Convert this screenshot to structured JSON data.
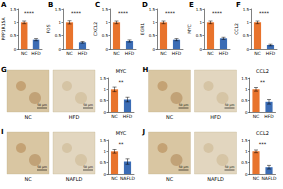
{
  "chart_data": [
    {
      "panel": "A",
      "type": "bar",
      "ylabel": "PPP1R15A",
      "categories": [
        "NC",
        "HFD"
      ],
      "values": [
        1.0,
        0.35
      ],
      "errors": [
        0.05,
        0.04
      ],
      "colors": [
        "#e8732c",
        "#3b6cb5"
      ],
      "ylim": [
        0,
        1.5
      ],
      "yticks": [
        0,
        0.5,
        1,
        1.5
      ],
      "grid": false,
      "annotation": "****"
    },
    {
      "panel": "B",
      "type": "bar",
      "ylabel": "FOS",
      "categories": [
        "NC",
        "HFD"
      ],
      "values": [
        1.0,
        0.25
      ],
      "errors": [
        0.06,
        0.03
      ],
      "colors": [
        "#e8732c",
        "#3b6cb5"
      ],
      "ylim": [
        0,
        1.5
      ],
      "yticks": [
        0,
        0.5,
        1,
        1.5
      ],
      "grid": false,
      "annotation": "****"
    },
    {
      "panel": "C",
      "type": "bar",
      "ylabel": "CXCL2",
      "categories": [
        "NC",
        "HFD"
      ],
      "values": [
        1.0,
        0.3
      ],
      "errors": [
        0.05,
        0.04
      ],
      "colors": [
        "#e8732c",
        "#3b6cb5"
      ],
      "ylim": [
        0,
        1.5
      ],
      "yticks": [
        0,
        0.5,
        1,
        1.5
      ],
      "grid": false,
      "annotation": "****"
    },
    {
      "panel": "D",
      "type": "bar",
      "ylabel": "EGR1",
      "categories": [
        "NC",
        "HFD"
      ],
      "values": [
        1.0,
        0.35
      ],
      "errors": [
        0.05,
        0.04
      ],
      "colors": [
        "#e8732c",
        "#3b6cb5"
      ],
      "ylim": [
        0,
        1.5
      ],
      "yticks": [
        0,
        0.5,
        1,
        1.5
      ],
      "grid": false,
      "annotation": "****"
    },
    {
      "panel": "E",
      "type": "bar",
      "ylabel": "MYC",
      "categories": [
        "NC",
        "HFD"
      ],
      "values": [
        1.0,
        0.4
      ],
      "errors": [
        0.05,
        0.04
      ],
      "colors": [
        "#e8732c",
        "#3b6cb5"
      ],
      "ylim": [
        0,
        1.5
      ],
      "yticks": [
        0,
        0.5,
        1,
        1.5
      ],
      "grid": false,
      "annotation": "****"
    },
    {
      "panel": "F",
      "type": "bar",
      "ylabel": "CCL2",
      "categories": [
        "NC",
        "HFD"
      ],
      "values": [
        1.0,
        0.15
      ],
      "errors": [
        0.05,
        0.03
      ],
      "colors": [
        "#e8732c",
        "#3b6cb5"
      ],
      "ylim": [
        0,
        1.5
      ],
      "yticks": [
        0,
        0.5,
        1,
        1.5
      ],
      "grid": false,
      "annotation": "****"
    },
    {
      "panel": "G",
      "type": "bar",
      "title": "MYC",
      "categories": [
        "NC",
        "HFD"
      ],
      "values": [
        1.0,
        0.55
      ],
      "errors": [
        0.1,
        0.1
      ],
      "colors": [
        "#e8732c",
        "#3b6cb5"
      ],
      "ylim": [
        0,
        1.5
      ],
      "yticks": [
        0,
        0.5,
        1,
        1.5
      ],
      "grid": false,
      "annotation": "**",
      "images": [
        {
          "label": "NC",
          "scale_bar": "50 μm"
        },
        {
          "label": "HFD",
          "scale_bar": "50 μm"
        }
      ]
    },
    {
      "panel": "H",
      "type": "bar",
      "title": "CCL2",
      "categories": [
        "NC",
        "HFD"
      ],
      "values": [
        1.0,
        0.45
      ],
      "errors": [
        0.08,
        0.1
      ],
      "colors": [
        "#e8732c",
        "#3b6cb5"
      ],
      "ylim": [
        0,
        1.5
      ],
      "yticks": [
        0,
        0.5,
        1,
        1.5
      ],
      "grid": false,
      "annotation": "**",
      "images": [
        {
          "label": "NC",
          "scale_bar": "50 μm"
        },
        {
          "label": "HFD",
          "scale_bar": "50 μm"
        }
      ]
    },
    {
      "panel": "I",
      "type": "bar",
      "title": "MYC",
      "categories": [
        "NC",
        "NAFLD"
      ],
      "values": [
        1.0,
        0.55
      ],
      "errors": [
        0.08,
        0.12
      ],
      "colors": [
        "#e8732c",
        "#3b6cb5"
      ],
      "ylim": [
        0,
        1.5
      ],
      "yticks": [
        0,
        0.5,
        1,
        1.5
      ],
      "grid": false,
      "annotation": "**",
      "images": [
        {
          "label": "NC",
          "scale_bar": "50 μm"
        },
        {
          "label": "NAFLD",
          "scale_bar": "50 μm"
        }
      ]
    },
    {
      "panel": "J",
      "type": "bar",
      "title": "CCL2",
      "categories": [
        "NC",
        "NAFLD"
      ],
      "values": [
        1.0,
        0.3
      ],
      "errors": [
        0.06,
        0.08
      ],
      "colors": [
        "#e8732c",
        "#3b6cb5"
      ],
      "ylim": [
        0,
        1.5
      ],
      "yticks": [
        0,
        0.5,
        1,
        1.5
      ],
      "grid": false,
      "annotation": "***",
      "images": [
        {
          "label": "NC",
          "scale_bar": "50 μm"
        },
        {
          "label": "NAFLD",
          "scale_bar": "50 μm"
        }
      ]
    }
  ]
}
